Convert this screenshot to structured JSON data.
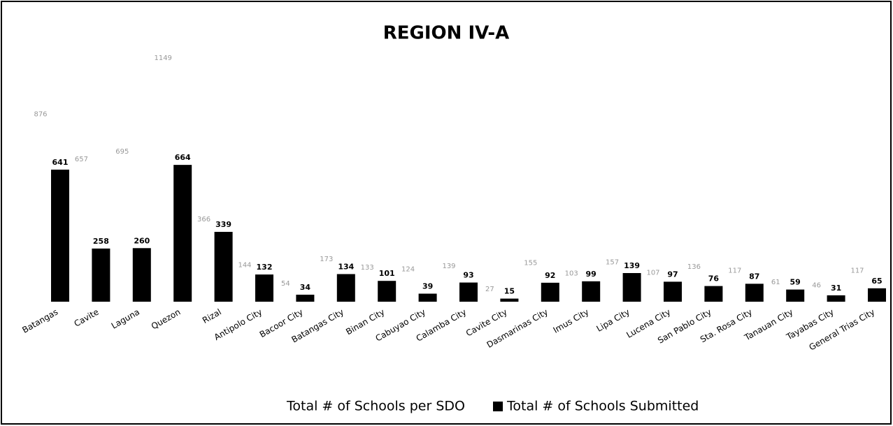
{
  "chart_data": {
    "type": "bar",
    "title": "REGION IV-A",
    "categories": [
      "Batangas",
      "Cavite",
      "Laguna",
      "Quezon",
      "Rizal",
      "Antipolo City",
      "Bacoor City",
      "Batangas City",
      "Binan City",
      "Cabuyao City",
      "Calamba City",
      "Cavite City",
      "Dasmarinas City",
      "Imus City",
      "Lipa City",
      "Lucena City",
      "San Pablo City",
      "Sta. Rosa City",
      "Tanauan City",
      "Tayabas City",
      "General Trias City"
    ],
    "series": [
      {
        "name": "Total # of Schools per SDO",
        "color": "#ffffff",
        "values": [
          876,
          657,
          695,
          1149,
          366,
          144,
          54,
          173,
          133,
          124,
          139,
          27,
          155,
          103,
          157,
          107,
          136,
          117,
          61,
          46,
          117
        ]
      },
      {
        "name": "Total # of Schools Submitted",
        "color": "#000000",
        "values": [
          641,
          258,
          260,
          664,
          339,
          132,
          34,
          134,
          101,
          39,
          93,
          15,
          92,
          99,
          139,
          97,
          76,
          87,
          59,
          31,
          65
        ]
      }
    ],
    "ylim": [
      0,
      1200
    ],
    "legend": "bottom"
  }
}
